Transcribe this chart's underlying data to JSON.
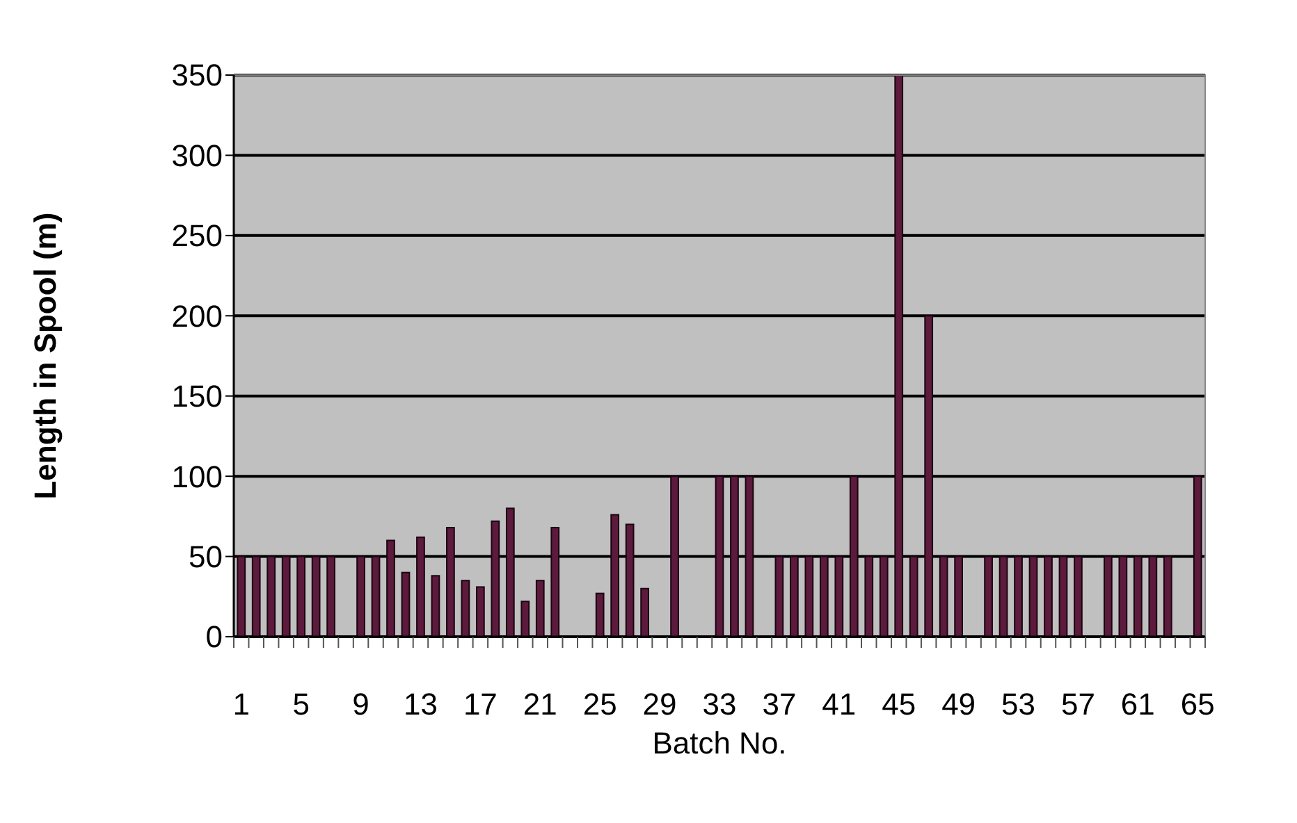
{
  "chart_data": {
    "type": "bar",
    "xlabel": "Batch No.",
    "ylabel": "Length in Spool (m)",
    "categories": [
      "1",
      null,
      null,
      null,
      "5",
      null,
      null,
      null,
      "9",
      null,
      null,
      null,
      "13",
      null,
      null,
      null,
      "17",
      null,
      null,
      null,
      "21",
      null,
      null,
      null,
      "25",
      null,
      null,
      null,
      "29",
      null,
      null,
      null,
      "33",
      null,
      null,
      null,
      "37",
      null,
      null,
      null,
      "41",
      null,
      null,
      null,
      "45",
      null,
      null,
      null,
      "49",
      null,
      null,
      null,
      "53",
      null,
      null,
      null,
      "57",
      null,
      null,
      null,
      "61",
      null,
      null,
      null,
      "65"
    ],
    "values": [
      50,
      50,
      50,
      50,
      50,
      50,
      50,
      0,
      50,
      50,
      60,
      40,
      62,
      38,
      68,
      35,
      31,
      72,
      80,
      22,
      35,
      68,
      0,
      0,
      27,
      76,
      70,
      30,
      0,
      100,
      0,
      0,
      100,
      100,
      100,
      0,
      50,
      50,
      50,
      50,
      50,
      100,
      50,
      50,
      350,
      50,
      200,
      50,
      50,
      0,
      50,
      50,
      50,
      50,
      50,
      50,
      50,
      0,
      50,
      50,
      50,
      50,
      50,
      0,
      100
    ],
    "color": "#5c1a3c",
    "ylim": [
      0,
      350
    ],
    "yticks": [
      0,
      50,
      100,
      150,
      200,
      250,
      300,
      350
    ],
    "grid": "y"
  }
}
